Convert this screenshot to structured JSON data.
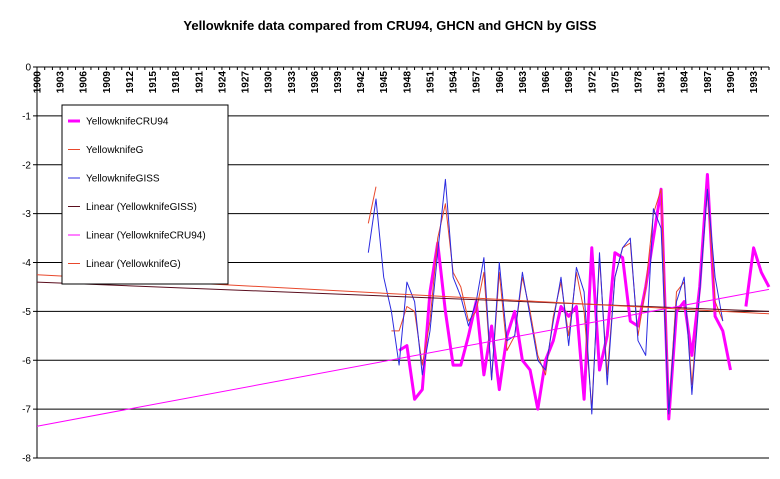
{
  "chart_data": {
    "type": "line",
    "title": "Yellowknife data compared from CRU94, GHCN and GHCN by GISS",
    "xlabel": "",
    "ylabel": "",
    "ylim": [
      -8,
      0
    ],
    "y_ticks": [
      0,
      -1,
      -2,
      -3,
      -4,
      -5,
      -6,
      -7,
      -8
    ],
    "x_range": [
      1900,
      1995
    ],
    "x_ticks": [
      1900,
      1903,
      1906,
      1909,
      1912,
      1915,
      1918,
      1921,
      1924,
      1927,
      1930,
      1933,
      1936,
      1939,
      1942,
      1945,
      1948,
      1951,
      1954,
      1957,
      1960,
      1963,
      1966,
      1969,
      1972,
      1975,
      1978,
      1981,
      1984,
      1987,
      1990,
      1993
    ],
    "grid": "horizontal",
    "legend_position": "left",
    "series": [
      {
        "name": "YellowknifeCRU94",
        "color": "#ff00ff",
        "width": 3,
        "x": [
          1947,
          1948,
          1949,
          1950,
          1951,
          1952,
          1953,
          1954,
          1955,
          1956,
          1957,
          1958,
          1959,
          1960,
          1961,
          1962,
          1963,
          1964,
          1965,
          1966,
          1967,
          1968,
          1969,
          1970,
          1971,
          1972,
          1973,
          1974,
          1975,
          1976,
          1977,
          1978,
          1979,
          1980,
          1981,
          1982,
          1983,
          1984,
          1985,
          1986,
          1987,
          1988,
          1989,
          1990,
          null,
          1992,
          1993,
          1994,
          1995
        ],
        "values": [
          -5.8,
          -5.7,
          -6.8,
          -6.6,
          -4.6,
          -3.6,
          -5.0,
          -6.1,
          -6.1,
          -5.5,
          -4.8,
          -6.3,
          -5.3,
          -6.6,
          -5.5,
          -5.0,
          -6.0,
          -6.2,
          -7.0,
          -6.0,
          -5.6,
          -4.9,
          -5.1,
          -4.9,
          -6.8,
          -3.7,
          -6.2,
          -5.5,
          -3.8,
          -3.9,
          -5.2,
          -5.3,
          -4.5,
          -3.5,
          -2.5,
          -7.2,
          -5.0,
          -4.8,
          -5.9,
          -4.5,
          -2.2,
          -5.1,
          -5.4,
          -6.2,
          null,
          -4.9,
          -3.7,
          -4.2,
          -4.5
        ]
      },
      {
        "name": "YellowknifeG",
        "color": "#e8482c",
        "width": 1,
        "x": [
          1943,
          1944,
          null,
          1946,
          1947,
          1948,
          1949,
          1950,
          1951,
          1952,
          1953,
          1954,
          1955,
          1956,
          1957,
          1958,
          1959,
          1960,
          1961,
          1962,
          1963,
          1964,
          1965,
          1966,
          1967,
          1968,
          1969,
          1970,
          1971,
          1972,
          1973,
          1974,
          1975,
          1976,
          1977,
          1978,
          1979,
          1980,
          1981,
          1982,
          1983,
          1984,
          1985,
          1986,
          1987,
          1988,
          1989
        ],
        "values": [
          -3.2,
          -2.45,
          null,
          -5.4,
          -5.4,
          -4.9,
          -5.0,
          -6.1,
          -5.2,
          -3.5,
          -2.8,
          -4.2,
          -4.5,
          -5.2,
          -5.0,
          -4.2,
          -6.4,
          -4.2,
          -5.8,
          -5.5,
          -4.3,
          -5.0,
          -5.9,
          -6.3,
          -5.1,
          -4.4,
          -5.5,
          -4.2,
          -5.0,
          -7.0,
          -3.9,
          -6.3,
          -4.3,
          -3.7,
          -3.6,
          -5.5,
          -4.5,
          -3.0,
          -2.5,
          -7.1,
          -4.6,
          -4.4,
          -6.5,
          -4.6,
          -2.5,
          -4.8,
          -5.2
        ]
      },
      {
        "name": "YellowknifeGISS",
        "color": "#2b2be0",
        "width": 1,
        "x": [
          1943,
          1944,
          1945,
          1946,
          1947,
          1948,
          1949,
          1950,
          1951,
          1952,
          1953,
          1954,
          1955,
          1956,
          1957,
          1958,
          1959,
          1960,
          1961,
          1962,
          1963,
          1964,
          1965,
          1966,
          1967,
          1968,
          1969,
          1970,
          1971,
          1972,
          1973,
          1974,
          1975,
          1976,
          1977,
          1978,
          1979,
          1980,
          1981,
          1982,
          1983,
          1984,
          1985,
          1986,
          1987,
          1988,
          1989
        ],
        "values": [
          -3.8,
          -2.7,
          -4.3,
          -5.0,
          -6.1,
          -4.4,
          -4.8,
          -6.3,
          -5.4,
          -3.8,
          -2.3,
          -4.3,
          -4.7,
          -5.3,
          -4.8,
          -3.9,
          -6.4,
          -4.0,
          -5.6,
          -5.5,
          -4.2,
          -5.1,
          -6.0,
          -6.2,
          -5.2,
          -4.3,
          -5.7,
          -4.1,
          -4.6,
          -7.1,
          -3.8,
          -6.5,
          -4.3,
          -3.7,
          -3.5,
          -5.6,
          -5.9,
          -2.9,
          -3.3,
          -7.1,
          -4.8,
          -4.3,
          -6.7,
          -4.6,
          -2.5,
          -4.3,
          -5.2
        ]
      },
      {
        "name": "Linear (YellowknifeGISS)",
        "color": "#5a0e1e",
        "width": 1,
        "x": [
          1900,
          1995
        ],
        "values": [
          -4.4,
          -5.0
        ]
      },
      {
        "name": "Linear (YellowknifeCRU94)",
        "color": "#ff00ff",
        "width": 1,
        "x": [
          1900,
          1995
        ],
        "values": [
          -7.35,
          -4.55
        ]
      },
      {
        "name": "Linear (YellowknifeG)",
        "color": "#e8482c",
        "width": 1,
        "x": [
          1900,
          1995
        ],
        "values": [
          -4.25,
          -5.05
        ]
      }
    ]
  }
}
